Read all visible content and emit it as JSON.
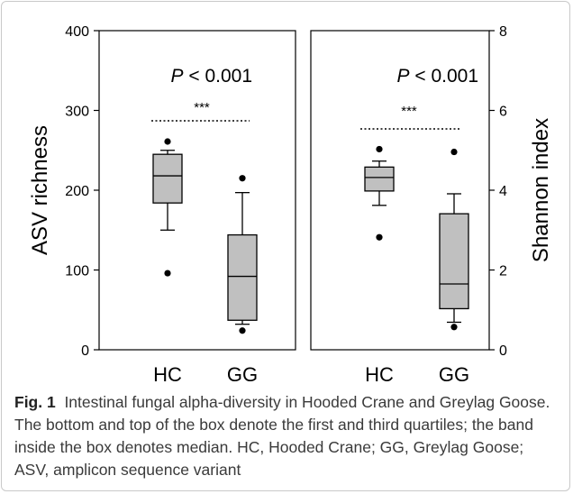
{
  "caption": {
    "label": "Fig. 1",
    "text": "Intestinal fungal alpha-diversity in Hooded Crane and Greylag Goose. The bottom and top of the box denote the first and third quartiles; the band inside the box denotes median. HC, Hooded Crane; GG, Greylag Goose; ASV, amplicon sequence variant"
  },
  "colors": {
    "box_fill": "#c0c0c0",
    "stroke": "#000000",
    "frame": "#c9c9c9"
  },
  "chart_data": [
    {
      "type": "box",
      "ylabel": "ASV richness",
      "ylim": [
        0,
        400
      ],
      "yticks": [
        "0",
        "100",
        "200",
        "300",
        "400"
      ],
      "categories": [
        "HC",
        "GG"
      ],
      "annotation": {
        "stat_prefix": "P",
        "stat_suffix": " < 0.001",
        "significance": "***"
      },
      "boxes": [
        {
          "category": "HC",
          "whisker_low": 150,
          "q1": 184,
          "median": 218,
          "q3": 245,
          "whisker_high": 250,
          "outliers": [
            96,
            261
          ]
        },
        {
          "category": "GG",
          "whisker_low": 32,
          "q1": 37,
          "median": 92,
          "q3": 144,
          "whisker_high": 197,
          "outliers": [
            24,
            215
          ]
        }
      ],
      "grid": false
    },
    {
      "type": "box",
      "ylabel": "Shannon index",
      "ylim": [
        0,
        8
      ],
      "yticks": [
        "0",
        "2",
        "4",
        "6",
        "8"
      ],
      "categories": [
        "HC",
        "GG"
      ],
      "annotation": {
        "stat_prefix": "P",
        "stat_suffix": " < 0.001",
        "significance": "***"
      },
      "boxes": [
        {
          "category": "HC",
          "whisker_low": 3.62,
          "q1": 3.98,
          "median": 4.32,
          "q3": 4.58,
          "whisker_high": 4.73,
          "outliers": [
            2.82,
            5.03
          ]
        },
        {
          "category": "GG",
          "whisker_low": 0.69,
          "q1": 1.03,
          "median": 1.65,
          "q3": 3.41,
          "whisker_high": 3.91,
          "outliers": [
            0.57,
            4.96
          ]
        }
      ],
      "grid": false
    }
  ]
}
